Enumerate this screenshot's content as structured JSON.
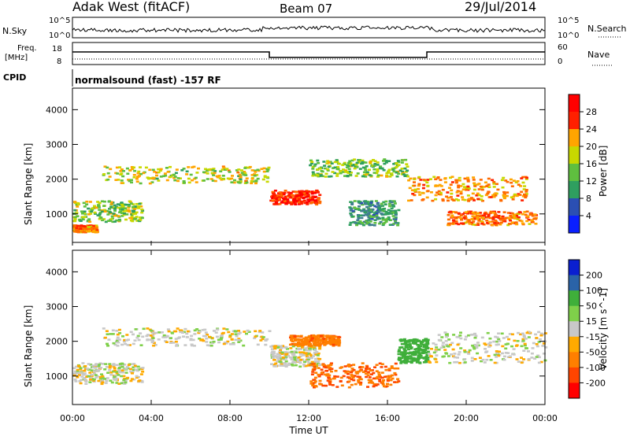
{
  "header": {
    "station": "Adak West (fitACF)",
    "beam": "Beam 07",
    "date": "29/Jul/2014"
  },
  "top_panels": {
    "nsky_label": "N.Sky",
    "nsky_ticks": [
      "10^5",
      "10^0"
    ],
    "nsearch_label": "N.Search",
    "nsearch_ticks": [
      "10^5",
      "10^0"
    ],
    "freq_label": "Freq.",
    "freq_unit": "[MHz]",
    "freq_ticks": [
      "18",
      "8"
    ],
    "nave_label": "Nave",
    "nave_ticks": [
      "60",
      "0"
    ],
    "cpid_label": "CPID",
    "cpid_text": "normalsound (fast) -157 RF"
  },
  "colors": {
    "power": [
      "#0a1fff",
      "#2b4fb3",
      "#3f7f8f",
      "#2f9f5f",
      "#5fbf3f",
      "#c8d800",
      "#ffa500",
      "#ff6a00",
      "#ff2000",
      "#ff0000"
    ],
    "velocity": [
      "#ff0000",
      "#ff4500",
      "#ff7f00",
      "#ffaa00",
      "#c8c8c8",
      "#c8c8c8",
      "#7fd04a",
      "#3faf3a",
      "#2a63a8",
      "#0a1fd0"
    ]
  },
  "chart_data": [
    {
      "type": "heatmap",
      "name": "Power",
      "ylabel": "Slant Range [km]",
      "ylim": [
        180,
        4620
      ],
      "y_ticks": [
        1000,
        2000,
        3000,
        4000
      ],
      "x_ticks": [
        "00:00",
        "04:00",
        "08:00",
        "12:00",
        "16:00",
        "20:00",
        "00:00"
      ],
      "colorbar_label": "Power [dB]",
      "colorbar_ticks": [
        "4",
        "8",
        "12",
        "16",
        "20",
        "24",
        "28"
      ],
      "xlim_hours": [
        0,
        24
      ],
      "bands": [
        {
          "range_km": [
            500,
            700
          ],
          "hours": [
            0,
            1.2
          ],
          "db": 22
        },
        {
          "range_km": [
            800,
            1400
          ],
          "hours": [
            0,
            3.5
          ],
          "db": 14
        },
        {
          "range_km": [
            1900,
            2400
          ],
          "hours": [
            1.5,
            10
          ],
          "db": 16
        },
        {
          "range_km": [
            1300,
            1700
          ],
          "hours": [
            10,
            12.5
          ],
          "db": 26
        },
        {
          "range_km": [
            2100,
            2600
          ],
          "hours": [
            12,
            17
          ],
          "db": 13
        },
        {
          "range_km": [
            700,
            1400
          ],
          "hours": [
            14,
            16.5
          ],
          "db": 9
        },
        {
          "range_km": [
            1400,
            2100
          ],
          "hours": [
            17,
            23
          ],
          "db": 20
        },
        {
          "range_km": [
            700,
            1100
          ],
          "hours": [
            19,
            23.5
          ],
          "db": 22
        }
      ]
    },
    {
      "type": "heatmap",
      "name": "Velocity",
      "ylabel": "Slant Range [km]",
      "ylim": [
        180,
        4620
      ],
      "y_ticks": [
        1000,
        2000,
        3000,
        4000
      ],
      "x_ticks": [
        "00:00",
        "04:00",
        "08:00",
        "12:00",
        "16:00",
        "20:00",
        "00:00"
      ],
      "xlabel": "Time UT",
      "colorbar_label": "Velocity [m s^-1]",
      "colorbar_ticks": [
        "200",
        "100",
        "50",
        "15",
        "-15",
        "-50",
        "-100",
        "-200"
      ],
      "xlim_hours": [
        0,
        24
      ],
      "bands": [
        {
          "range_km": [
            800,
            1400
          ],
          "hours": [
            0,
            3.5
          ],
          "v": 0
        },
        {
          "range_km": [
            1900,
            2400
          ],
          "hours": [
            1.5,
            10
          ],
          "v": 0
        },
        {
          "range_km": [
            1300,
            1900
          ],
          "hours": [
            10,
            12.5
          ],
          "v": 0
        },
        {
          "range_km": [
            1900,
            2200
          ],
          "hours": [
            11,
            13.5
          ],
          "v": -60
        },
        {
          "range_km": [
            700,
            1400
          ],
          "hours": [
            12,
            16.5
          ],
          "v": -70
        },
        {
          "range_km": [
            1400,
            2100
          ],
          "hours": [
            16.5,
            18
          ],
          "v": 60
        },
        {
          "range_km": [
            1400,
            2300
          ],
          "hours": [
            18,
            24
          ],
          "v": 0
        }
      ]
    }
  ]
}
